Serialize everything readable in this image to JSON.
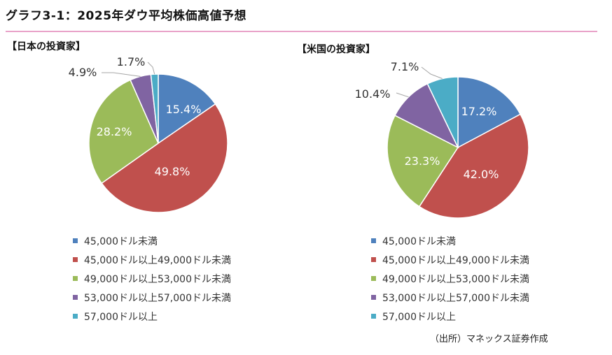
{
  "header": {
    "title": "グラフ3-1：2025年ダウ平均株価高値予想"
  },
  "chart_data": [
    {
      "type": "pie",
      "title": "【日本の投資家】",
      "categories": [
        "45,000ドル未満",
        "45,000ドル以上49,000ドル未満",
        "49,000ドル以上53,000ドル未満",
        "53,000ドル以上57,000ドル未満",
        "57,000ドル以上"
      ],
      "values": [
        15.4,
        49.8,
        28.2,
        4.9,
        1.7
      ],
      "labels": [
        "15.4%",
        "49.8%",
        "28.2%",
        "4.9%",
        "1.7%"
      ],
      "colors": [
        "#4f81bd",
        "#c0504d",
        "#9bbb59",
        "#8064a2",
        "#4bacc6"
      ],
      "legend": "bottom"
    },
    {
      "type": "pie",
      "title": "【米国の投資家】",
      "categories": [
        "45,000ドル未満",
        "45,000ドル以上49,000ドル未満",
        "49,000ドル以上53,000ドル未満",
        "53,000ドル以上57,000ドル未満",
        "57,000ドル以上"
      ],
      "values": [
        17.2,
        42.0,
        23.3,
        10.4,
        7.1
      ],
      "labels": [
        "17.2%",
        "42.0%",
        "23.3%",
        "10.4%",
        "7.1%"
      ],
      "colors": [
        "#4f81bd",
        "#c0504d",
        "#9bbb59",
        "#8064a2",
        "#4bacc6"
      ],
      "legend": "bottom"
    }
  ],
  "footer": {
    "source": "（出所）マネックス証券作成"
  }
}
